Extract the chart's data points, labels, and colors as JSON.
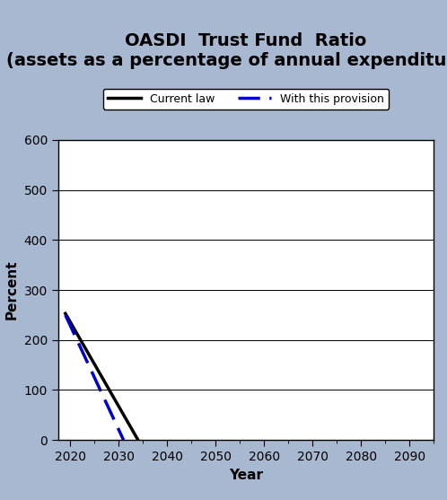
{
  "title_line1": "OASDI  Trust Fund  Ratio",
  "title_line2": "(assets as a percentage of annual expenditures)",
  "xlabel": "Year",
  "ylabel": "Percent",
  "background_color": "#a8b8d0",
  "plot_background_color": "#ffffff",
  "xlim": [
    2017.5,
    2095
  ],
  "ylim": [
    0,
    600
  ],
  "yticks": [
    0,
    100,
    200,
    300,
    400,
    500,
    600
  ],
  "xticks": [
    2020,
    2030,
    2040,
    2050,
    2060,
    2070,
    2080,
    2090
  ],
  "current_law": {
    "x": [
      2019,
      2034
    ],
    "y": [
      253,
      0
    ],
    "color": "#000000",
    "linewidth": 2.5,
    "label": "Current law"
  },
  "provision": {
    "x": [
      2019,
      2031
    ],
    "y": [
      250,
      0
    ],
    "color": "#0000cc",
    "linewidth": 2.5,
    "linestyle": "--",
    "label": "With this provision"
  },
  "title_fontsize": 14,
  "subtitle_fontsize": 11,
  "axis_label_fontsize": 11,
  "tick_fontsize": 10,
  "legend_fontsize": 9
}
